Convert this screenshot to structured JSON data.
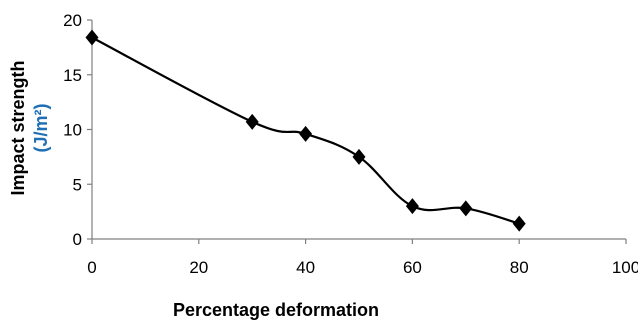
{
  "chart_data": {
    "type": "line",
    "title": "",
    "xlabel": "Percentage deformation",
    "ylabel": "Impact strength",
    "ylabel_unit": "(J/m²)",
    "xlim": [
      0,
      100
    ],
    "ylim": [
      0,
      20
    ],
    "x_ticks": [
      0,
      20,
      40,
      60,
      80,
      100
    ],
    "y_ticks": [
      0,
      5,
      10,
      15,
      20
    ],
    "grid": false,
    "legend": "none",
    "line_style": "smoothed",
    "marker": "diamond",
    "colors": {
      "line": "#000000",
      "marker": "#000000",
      "axis": "#808080",
      "unit_label": "#1f6fb5"
    },
    "series": [
      {
        "x": [
          0,
          30,
          40,
          50,
          60,
          70,
          80
        ],
        "y": [
          18.4,
          10.7,
          9.6,
          7.5,
          3.0,
          2.8,
          1.4
        ]
      }
    ]
  }
}
